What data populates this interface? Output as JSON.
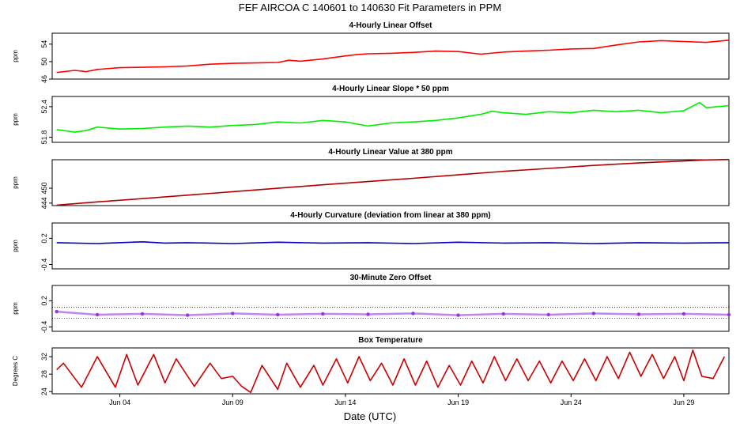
{
  "figure": {
    "title": "FEF   AIRCOA C   140601 to 140630   Fit Parameters in PPM",
    "xlabel": "Date (UTC)",
    "x_tick_labels": [
      "Jun 04",
      "Jun 09",
      "Jun 14",
      "Jun 19",
      "Jun 24",
      "Jun 29"
    ]
  },
  "chart_data": [
    {
      "type": "line",
      "title": "4-Hourly Linear Offset",
      "ylabel": "ppm",
      "x_unit": "days since Jun 01 00:00 UTC",
      "xlim": [
        1.0,
        31.0
      ],
      "ylim": [
        46,
        56.5
      ],
      "y_ticks": [
        46,
        50,
        54
      ],
      "color": "#ff0000",
      "series": [
        {
          "name": "",
          "x": [
            1.2,
            2,
            2.5,
            3,
            4,
            5,
            6,
            7,
            8,
            9,
            10,
            11,
            11.5,
            12,
            13,
            14,
            14.5,
            15,
            16,
            17,
            18,
            19,
            20,
            21,
            22,
            23,
            24,
            25,
            26,
            27,
            28,
            29,
            30,
            31
          ],
          "y": [
            47.5,
            48,
            47.7,
            48.2,
            48.6,
            48.7,
            48.8,
            49.0,
            49.4,
            49.6,
            49.7,
            49.8,
            50.3,
            50.1,
            50.6,
            51.3,
            51.6,
            51.8,
            51.9,
            52.1,
            52.4,
            52.3,
            51.7,
            52.2,
            52.4,
            52.6,
            52.9,
            53.0,
            53.8,
            54.5,
            54.8,
            54.6,
            54.4,
            54.9
          ]
        }
      ]
    },
    {
      "type": "line",
      "title": "4-Hourly Linear Slope * 50 ppm",
      "ylabel": "ppm",
      "x_unit": "days since Jun 01 00:00 UTC",
      "xlim": [
        1.0,
        31.0
      ],
      "ylim": [
        51.7,
        52.6
      ],
      "y_ticks": [
        51.8,
        52.4
      ],
      "color": "#00ee00",
      "series": [
        {
          "name": "",
          "x": [
            1.2,
            2,
            2.5,
            3,
            4,
            5,
            6,
            7,
            8,
            9,
            10,
            11,
            12,
            13,
            14,
            15,
            16,
            17,
            18,
            19,
            20,
            20.5,
            21,
            22,
            23,
            24,
            25,
            26,
            27,
            28,
            29,
            29.7,
            30,
            31
          ],
          "y": [
            51.95,
            51.9,
            51.93,
            52.0,
            51.96,
            51.97,
            52.0,
            52.02,
            52.0,
            52.03,
            52.05,
            52.1,
            52.08,
            52.13,
            52.1,
            52.02,
            52.08,
            52.1,
            52.13,
            52.18,
            52.25,
            52.31,
            52.28,
            52.25,
            52.3,
            52.28,
            52.33,
            52.3,
            52.33,
            52.28,
            52.32,
            52.48,
            52.38,
            52.42
          ]
        }
      ]
    },
    {
      "type": "line",
      "title": "4-Hourly Linear Value at 380 ppm",
      "ylabel": "ppm",
      "x_unit": "days since Jun 01 00:00 UTC",
      "xlim": [
        1.0,
        31.0
      ],
      "ylim": [
        443,
        461.5
      ],
      "y_ticks": [
        444,
        450
      ],
      "color": "#b20000",
      "series": [
        {
          "name": "",
          "x": [
            1.2,
            3,
            5,
            7,
            9,
            11,
            13,
            15,
            17,
            19,
            21,
            23,
            25,
            27,
            29,
            30,
            31
          ],
          "y": [
            443.2,
            444.5,
            445.8,
            447.2,
            448.6,
            450.0,
            451.4,
            452.7,
            454.0,
            455.4,
            456.8,
            458.0,
            459.2,
            460.2,
            461.0,
            461.4,
            461.6
          ]
        }
      ]
    },
    {
      "type": "line",
      "title": "4-Hourly Curvature (deviation from linear at 380 ppm)",
      "ylabel": "ppm",
      "x_unit": "days since Jun 01 00:00 UTC",
      "xlim": [
        1.0,
        31.0
      ],
      "ylim": [
        -0.5,
        0.55
      ],
      "y_ticks": [
        -0.4,
        0.2
      ],
      "color": "#0000bb",
      "series": [
        {
          "name": "",
          "x": [
            1.2,
            3,
            5,
            6,
            7,
            9,
            11,
            13,
            15,
            17,
            19,
            21,
            23,
            25,
            27,
            29,
            31
          ],
          "y": [
            0.1,
            0.08,
            0.12,
            0.09,
            0.1,
            0.08,
            0.11,
            0.09,
            0.1,
            0.08,
            0.11,
            0.09,
            0.1,
            0.08,
            0.1,
            0.09,
            0.1
          ]
        }
      ]
    },
    {
      "type": "scatter",
      "title": "30-Minute Zero Offset",
      "ylabel": "ppm",
      "x_unit": "days since Jun 01 00:00 UTC",
      "xlim": [
        1.0,
        31.0
      ],
      "ylim": [
        -0.5,
        0.55
      ],
      "y_ticks": [
        -0.4,
        0.2
      ],
      "color": "#9933dd",
      "series": [
        {
          "name": "",
          "x": [
            1.2,
            3,
            5,
            7,
            9,
            11,
            13,
            15,
            17,
            19,
            21,
            23,
            25,
            27,
            29,
            31
          ],
          "y": [
            -0.05,
            -0.12,
            -0.1,
            -0.13,
            -0.09,
            -0.12,
            -0.1,
            -0.11,
            -0.09,
            -0.13,
            -0.1,
            -0.12,
            -0.09,
            -0.11,
            -0.1,
            -0.12
          ]
        }
      ]
    },
    {
      "type": "line",
      "title": "Box Temperature",
      "ylabel": "Degrees C",
      "x_unit": "days since Jun 01 00:00 UTC",
      "xlim": [
        1.0,
        31.0
      ],
      "ylim": [
        23.5,
        34
      ],
      "y_ticks": [
        24,
        28,
        32
      ],
      "color": "#cc0000",
      "series": [
        {
          "name": "",
          "x": [
            1.2,
            1.5,
            2.3,
            3.0,
            3.8,
            4.3,
            4.8,
            5.5,
            6.0,
            6.5,
            7.3,
            8.0,
            8.5,
            9.0,
            9.4,
            9.8,
            10.3,
            11.0,
            11.4,
            12.0,
            12.6,
            13.0,
            13.6,
            14.1,
            14.6,
            15.1,
            15.6,
            16.1,
            16.6,
            17.1,
            17.6,
            18.1,
            18.6,
            19.1,
            19.6,
            20.1,
            20.6,
            21.1,
            21.6,
            22.1,
            22.6,
            23.1,
            23.6,
            24.1,
            24.6,
            25.1,
            25.6,
            26.1,
            26.6,
            27.1,
            27.6,
            28.1,
            28.6,
            29.0,
            29.4,
            29.8,
            30.3,
            30.8
          ],
          "y": [
            29,
            30.5,
            25.0,
            32.0,
            25.0,
            32.5,
            25.5,
            32.5,
            26.0,
            31.5,
            25.2,
            30.5,
            27.0,
            27.5,
            25.2,
            23.8,
            30.0,
            24.5,
            30.5,
            25.0,
            30.0,
            25.5,
            31.5,
            26.0,
            32.0,
            26.5,
            30.5,
            25.5,
            31.5,
            25.5,
            31.0,
            25.0,
            30.0,
            25.5,
            31.0,
            26.0,
            32.0,
            26.5,
            31.5,
            26.5,
            31.0,
            26.0,
            31.0,
            26.5,
            31.5,
            26.5,
            32.0,
            27.0,
            33.0,
            27.5,
            32.5,
            27.0,
            32.0,
            26.5,
            33.5,
            27.5,
            27.0,
            32.0
          ]
        }
      ]
    }
  ]
}
